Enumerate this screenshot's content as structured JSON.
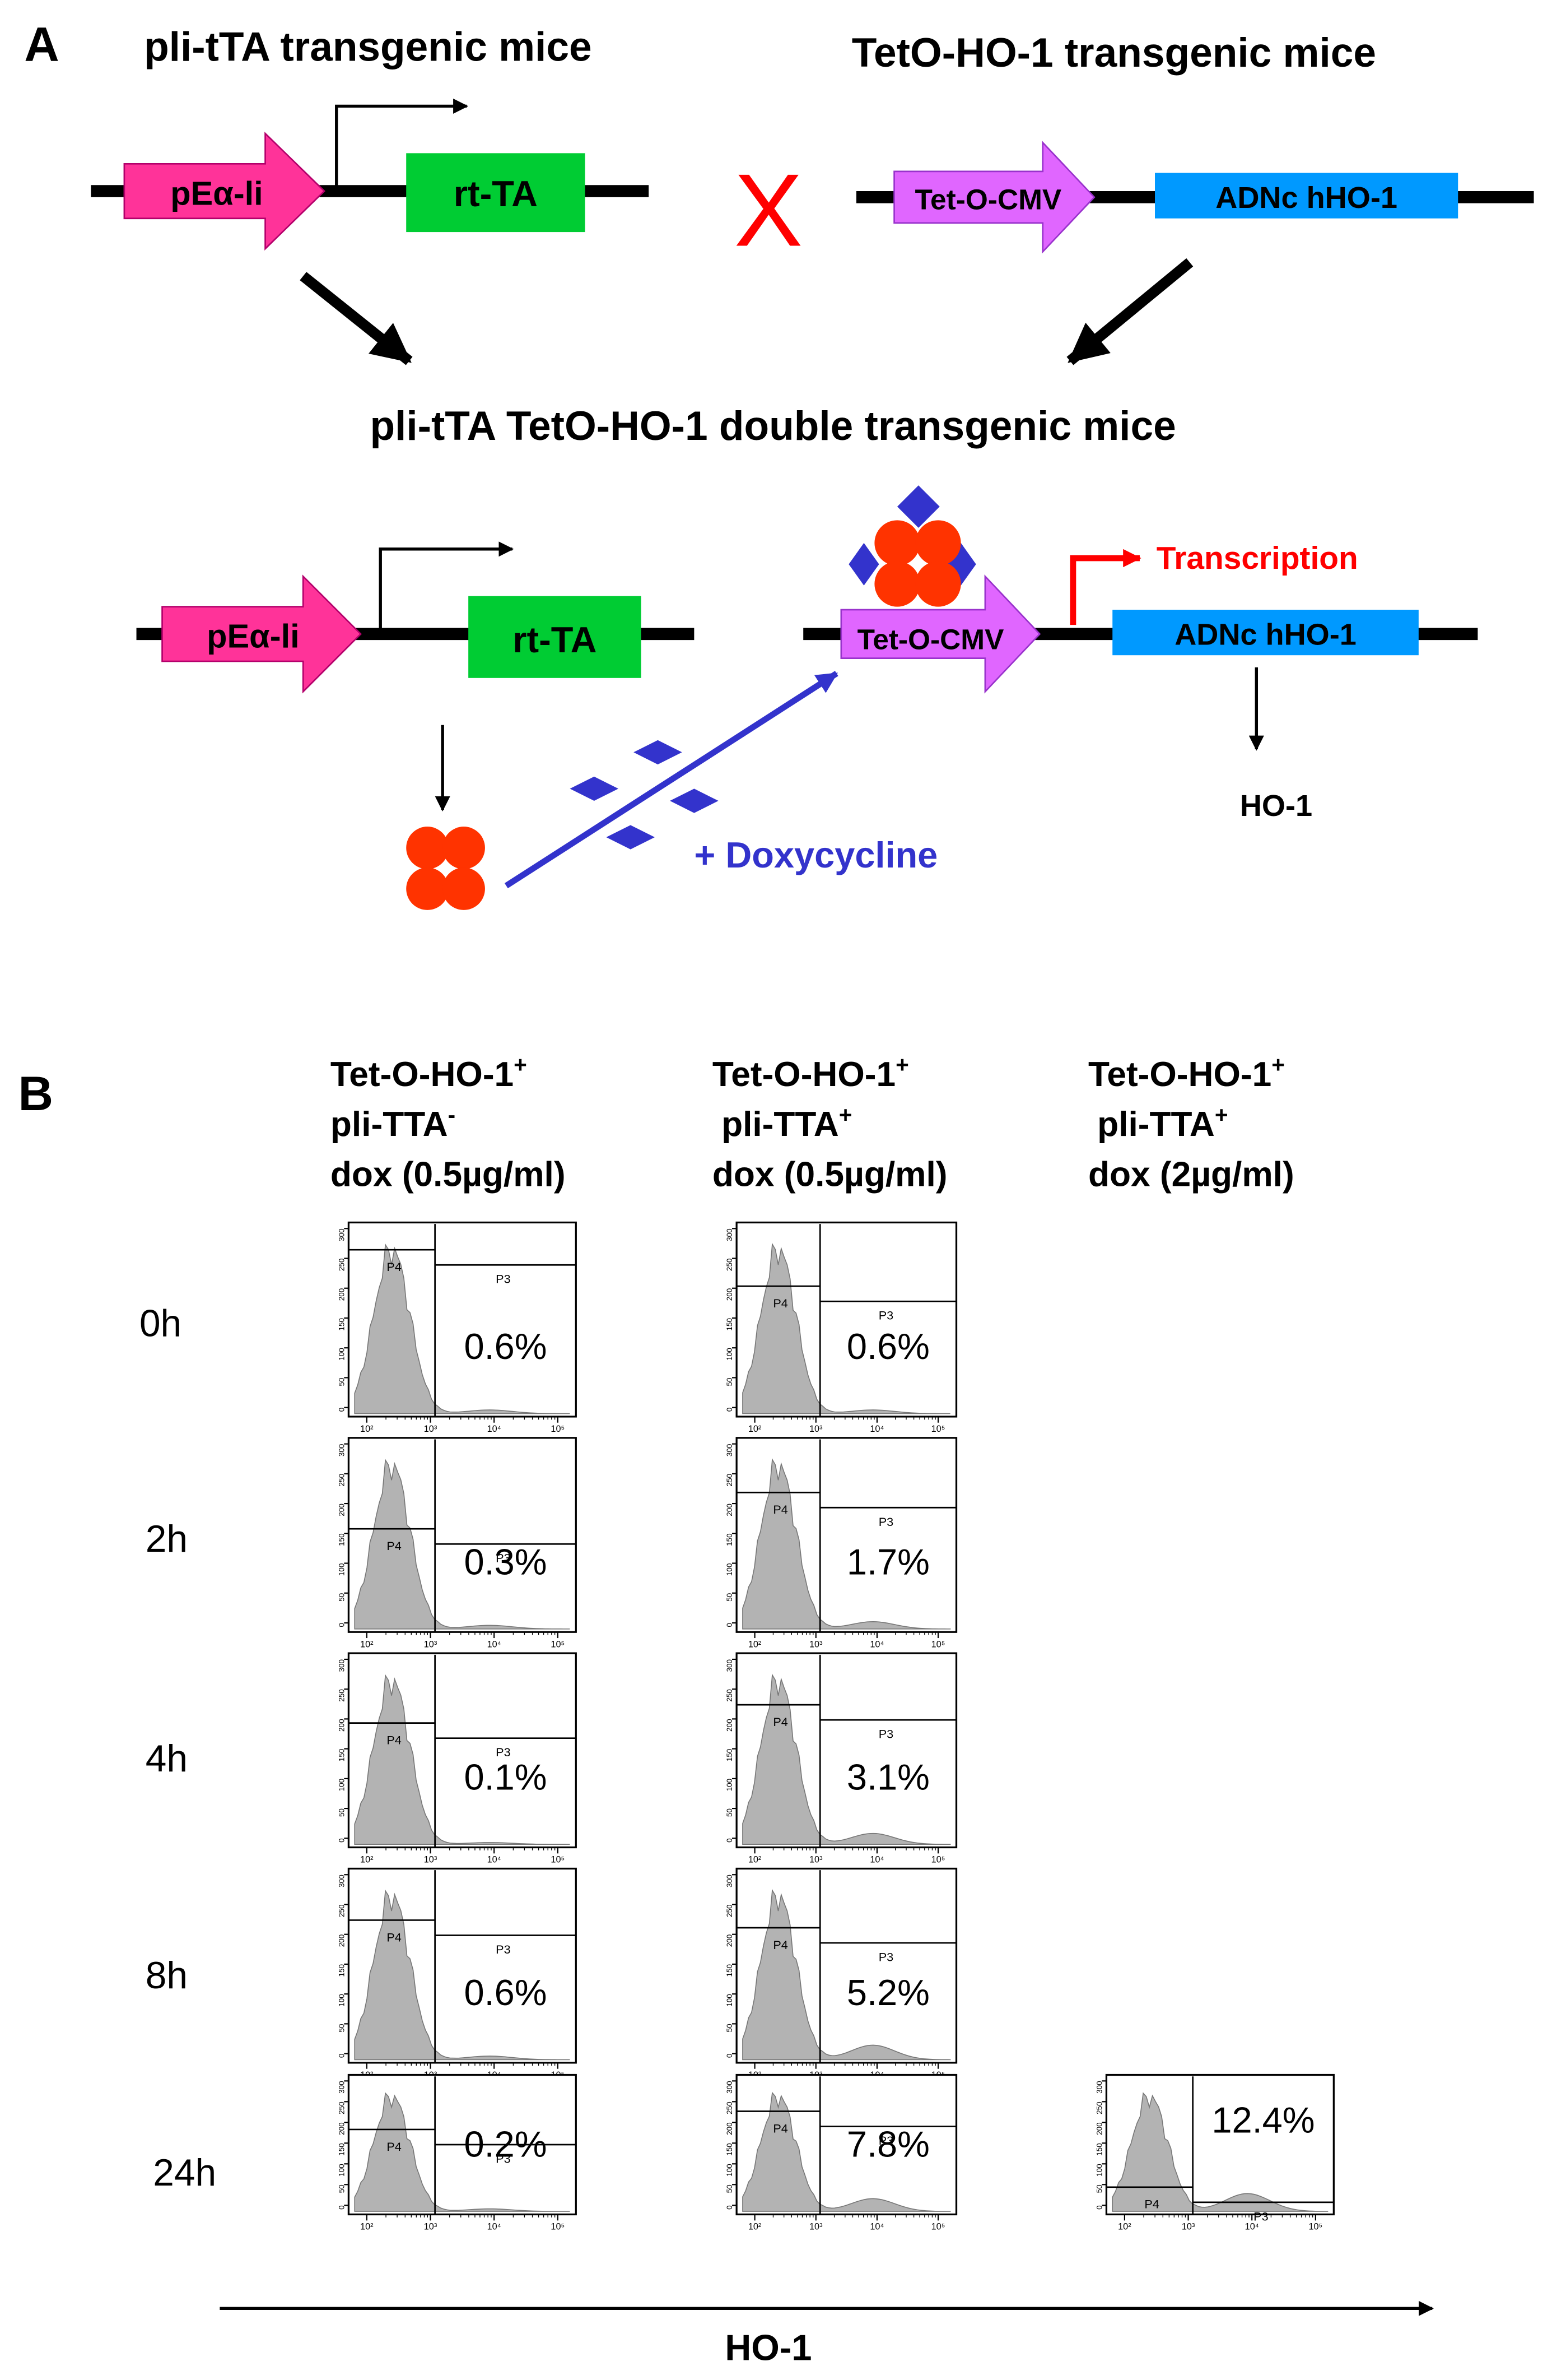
{
  "panel_a": {
    "label": "A",
    "parent1_title": "pli-tTA transgenic mice",
    "parent2_title": "TetO-HO-1 transgenic mice",
    "cross_symbol": "X",
    "offspring_title": "pli-tTA TetO-HO-1 double transgenic mice",
    "promoter_label": "pEα-li",
    "transactivator_label": "rt-TA",
    "operator_label": "Tet-O-CMV",
    "gene_label": "ADNc hHO-1",
    "transcription_label": "Transcription",
    "product_label": "HO-1",
    "drug_label": "+ Doxycycline"
  },
  "panel_b": {
    "label": "B",
    "columns": [
      {
        "line1": "Tet-O-HO-1",
        "sup1": "+",
        "line2": "pli-TTA",
        "sup2": "-",
        "line3": "dox (0.5µg/ml)"
      },
      {
        "line1": "Tet-O-HO-1",
        "sup1": "+",
        "line2": "pli-TTA",
        "sup2": "+",
        "line3": "dox (0.5µg/ml)"
      },
      {
        "line1": "Tet-O-HO-1",
        "sup1": "+",
        "line2": "pli-TTA",
        "sup2": "+",
        "line3": "dox (2µg/ml)"
      }
    ],
    "time_points": [
      "0h",
      "2h",
      "4h",
      "8h",
      "24h"
    ],
    "gate_negative": "P4",
    "gate_positive": "P3",
    "x_axis_label": "HO-1"
  },
  "chart_data": {
    "type": "histogram",
    "title": "",
    "xlabel": "HO-1",
    "x_scale": "log",
    "x_ticks": [
      "10²",
      "10³",
      "10⁴",
      "10⁵"
    ],
    "y_ticks": [
      "0",
      "50",
      "100",
      "150",
      "200",
      "250",
      "300"
    ],
    "series": [
      {
        "name": "Tet-O-HO-1+ pli-TTA- dox (0.5µg/ml)",
        "time": [
          "0h",
          "2h",
          "4h",
          "8h",
          "24h"
        ],
        "percent_P3": [
          "0.6%",
          "0.3%",
          "0.1%",
          "0.6%",
          "0.2%"
        ]
      },
      {
        "name": "Tet-O-HO-1+ pli-TTA+ dox (0.5µg/ml)",
        "time": [
          "0h",
          "2h",
          "4h",
          "8h",
          "24h"
        ],
        "percent_P3": [
          "0.6%",
          "1.7%",
          "3.1%",
          "5.2%",
          "7.8%"
        ]
      },
      {
        "name": "Tet-O-HO-1+ pli-TTA+ dox (2µg/ml)",
        "time": [
          "24h"
        ],
        "percent_P3": [
          "12.4%"
        ]
      }
    ]
  }
}
